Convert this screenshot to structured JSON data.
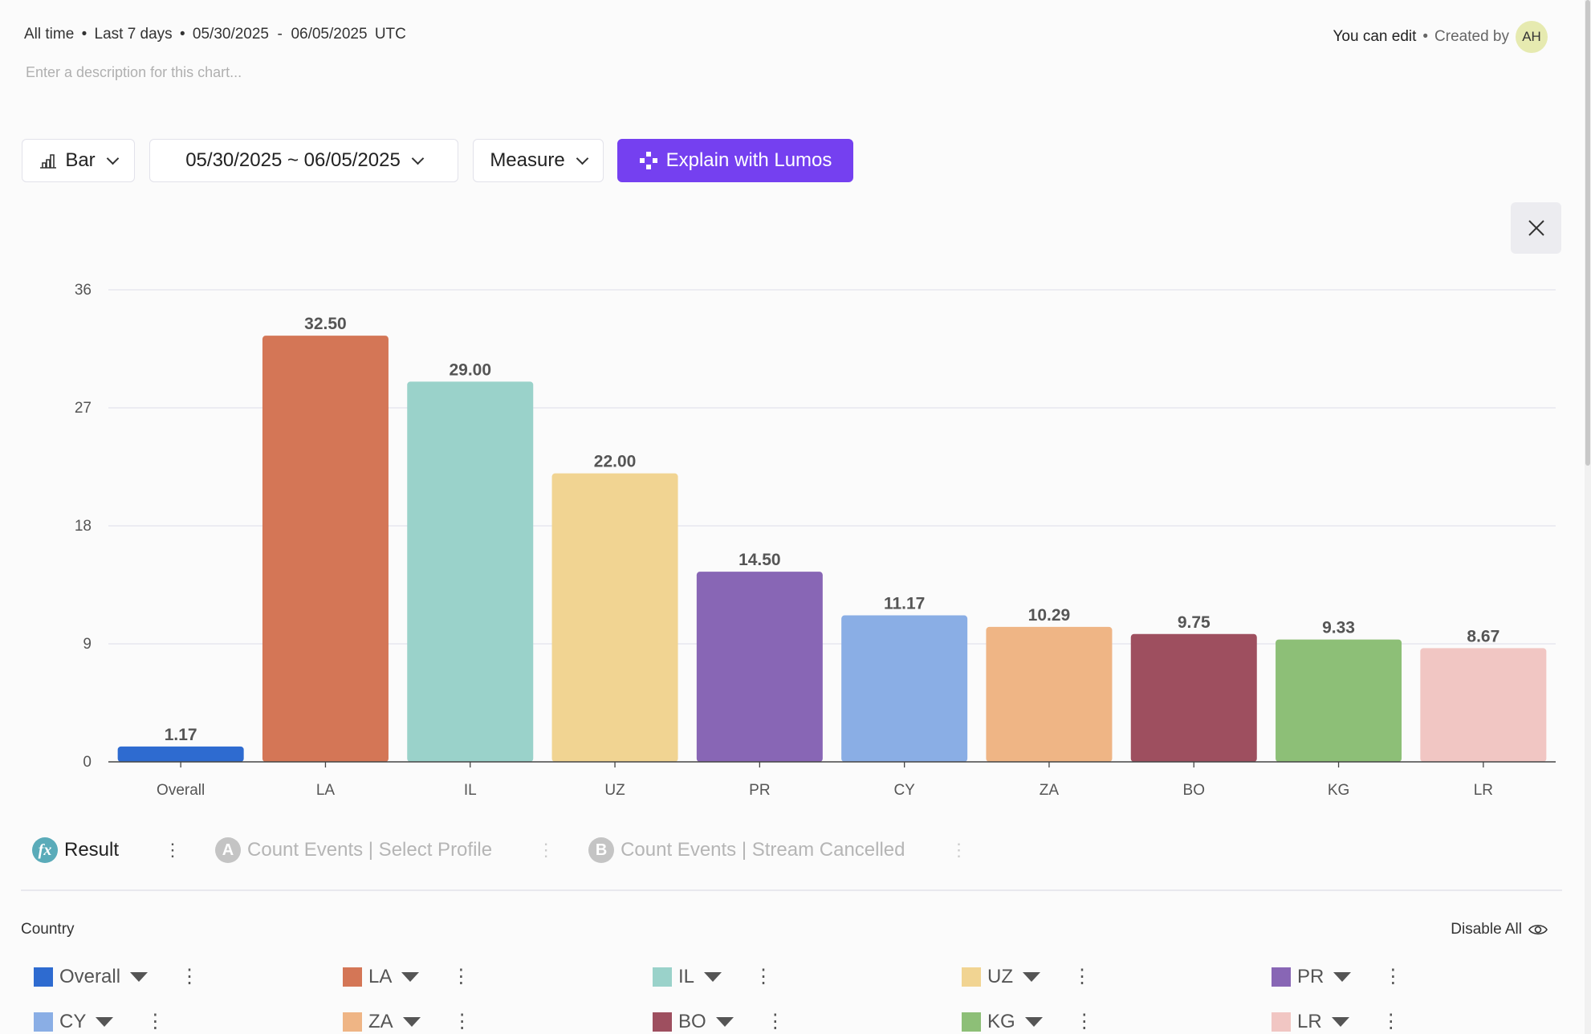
{
  "header": {
    "range_all": "All time",
    "range_preset": "Last 7 days",
    "range_dates": "05/30/2025  -  06/05/2025",
    "timezone": "UTC",
    "separator": "•",
    "description_placeholder": "Enter a description for this chart...",
    "permission": "You can edit",
    "created_by": "Created by",
    "avatar_initials": "AH"
  },
  "toolbar": {
    "chart_type": "Bar",
    "date_range": "05/30/2025 ~ 06/05/2025",
    "measure": "Measure",
    "lumos": "Explain with Lumos",
    "lumos_color": "#7540f0"
  },
  "queries": [
    {
      "badge": "fx",
      "label": "Result",
      "color": "#5aabb9",
      "active": true
    },
    {
      "badge": "A",
      "label": "Count Events | Select Profile",
      "color": "#c4c4c4",
      "active": false
    },
    {
      "badge": "B",
      "label": "Count Events | Stream Cancelled",
      "color": "#c4c4c4",
      "active": false
    }
  ],
  "legend_section": {
    "title": "Country",
    "disable_all": "Disable All"
  },
  "chart_data": {
    "type": "bar",
    "categories": [
      "Overall",
      "LA",
      "IL",
      "UZ",
      "PR",
      "CY",
      "ZA",
      "BO",
      "KG",
      "LR"
    ],
    "values": [
      1.17,
      32.5,
      29.0,
      22.0,
      14.5,
      11.17,
      10.29,
      9.75,
      9.33,
      8.67
    ],
    "value_labels": [
      "1.17",
      "32.50",
      "29.00",
      "22.00",
      "14.50",
      "11.17",
      "10.29",
      "9.75",
      "9.33",
      "8.67"
    ],
    "colors": [
      "#2e6bd0",
      "#d47656",
      "#9ad2ca",
      "#f1d492",
      "#8866b5",
      "#8aaee5",
      "#efb585",
      "#9e4f5f",
      "#8dbf77",
      "#f1c6c3"
    ],
    "yticks": [
      "0",
      "9",
      "18",
      "27",
      "36"
    ],
    "ylim": [
      0,
      36
    ],
    "grid": true,
    "xlabel": "",
    "ylabel": ""
  }
}
